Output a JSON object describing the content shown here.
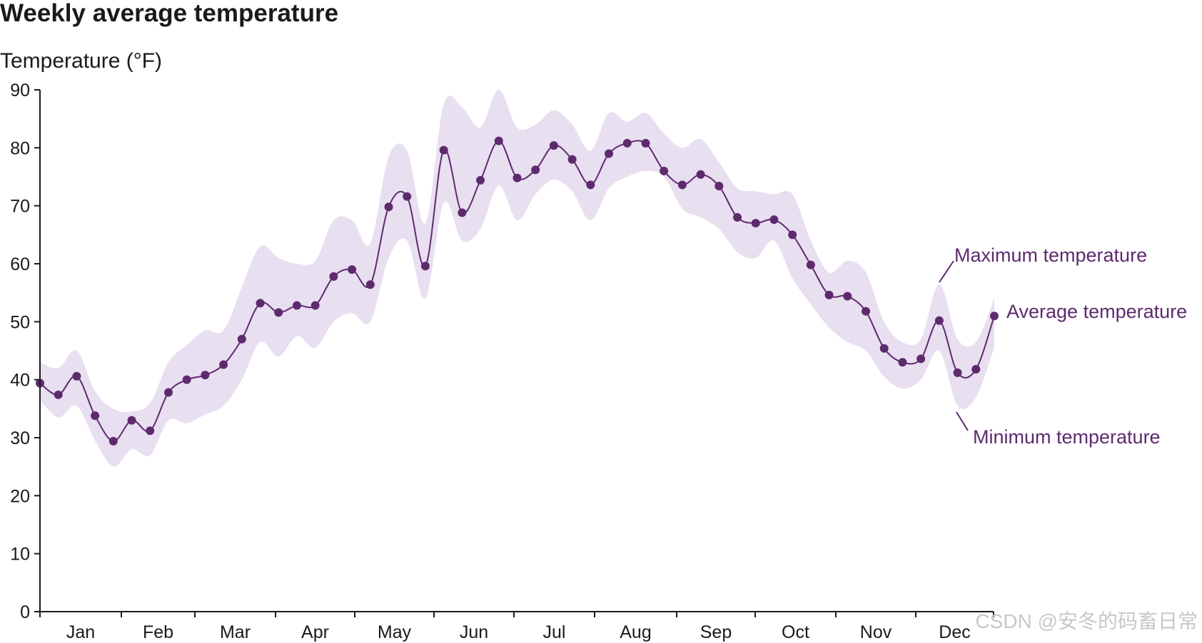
{
  "chart_data": {
    "type": "line",
    "title": "Weekly average temperature",
    "ylabel": "Temperature (°F)",
    "xlabel": "",
    "ylim": [
      0,
      90
    ],
    "yticks": [
      0,
      10,
      20,
      30,
      40,
      50,
      60,
      70,
      80,
      90
    ],
    "months": [
      "Jan",
      "Feb",
      "Mar",
      "Apr",
      "May",
      "Jun",
      "Jul",
      "Aug",
      "Sep",
      "Oct",
      "Nov",
      "Dec"
    ],
    "weeks": [
      1,
      2,
      3,
      4,
      5,
      6,
      7,
      8,
      9,
      10,
      11,
      12,
      13,
      14,
      15,
      16,
      17,
      18,
      19,
      20,
      21,
      22,
      23,
      24,
      25,
      26,
      27,
      28,
      29,
      30,
      31,
      32,
      33,
      34,
      35,
      36,
      37,
      38,
      39,
      40,
      41,
      42,
      43,
      44,
      45,
      46,
      47,
      48,
      49,
      50,
      51,
      52,
      53
    ],
    "series": [
      {
        "name": "Average temperature",
        "values": [
          39.4,
          37.4,
          40.6,
          33.8,
          29.4,
          33.0,
          31.2,
          37.8,
          40.0,
          40.8,
          42.6,
          47.0,
          53.2,
          51.6,
          52.8,
          52.8,
          57.8,
          59.0,
          56.4,
          69.8,
          71.6,
          59.6,
          79.6,
          68.8,
          74.4,
          81.2,
          74.8,
          76.2,
          80.4,
          78.0,
          73.6,
          79.0,
          80.8,
          80.8,
          76.0,
          73.6,
          75.4,
          73.4,
          68.0,
          67.0,
          67.6,
          65.0,
          59.8,
          54.6,
          54.4,
          51.8,
          45.4,
          43.0,
          43.6,
          50.2,
          41.2,
          41.8,
          51.0
        ]
      },
      {
        "name": "Maximum temperature",
        "values": [
          43.0,
          42.0,
          45.0,
          38.0,
          35.0,
          34.5,
          36.0,
          43.0,
          46.0,
          48.5,
          48.5,
          56.0,
          63.0,
          61.0,
          60.0,
          60.5,
          67.5,
          67.5,
          63.5,
          78.5,
          79.5,
          67.0,
          87.5,
          87.0,
          83.5,
          90.0,
          83.5,
          84.0,
          86.5,
          84.0,
          79.5,
          86.0,
          84.5,
          86.0,
          82.5,
          80.0,
          81.5,
          77.5,
          73.0,
          72.5,
          72.0,
          72.0,
          64.0,
          58.5,
          60.5,
          58.5,
          50.0,
          46.5,
          47.0,
          56.5,
          47.0,
          46.5,
          54.0
        ]
      },
      {
        "name": "Minimum temperature",
        "values": [
          36.5,
          33.5,
          35.5,
          29.5,
          25.0,
          28.0,
          27.0,
          33.0,
          32.5,
          34.0,
          35.5,
          40.0,
          46.5,
          44.0,
          47.5,
          45.5,
          50.0,
          51.5,
          50.0,
          61.0,
          64.0,
          54.0,
          70.5,
          64.0,
          66.0,
          73.5,
          67.5,
          72.0,
          74.5,
          72.5,
          67.5,
          73.0,
          75.0,
          76.0,
          75.0,
          69.5,
          68.0,
          66.0,
          62.0,
          61.0,
          64.0,
          57.5,
          53.0,
          49.0,
          46.5,
          45.0,
          40.5,
          38.5,
          40.0,
          45.0,
          35.5,
          37.0,
          45.5
        ]
      }
    ],
    "annotations": {
      "max_label": "Maximum temperature",
      "avg_label": "Average temperature",
      "min_label": "Minimum temperature"
    },
    "grid": false
  },
  "watermark": "CSDN @安冬的码畜日常",
  "colors": {
    "line": "#5e2a6e",
    "band": "#e8dff0",
    "axis": "#1a1a1a"
  }
}
